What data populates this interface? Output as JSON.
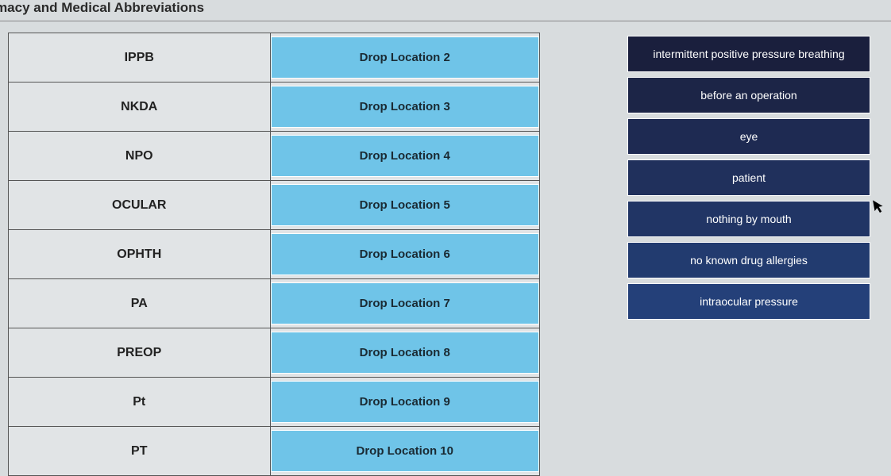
{
  "title": "armacy and Medical Abbreviations",
  "drop_zone_color": "#6fc4e8",
  "drop_zone_text_color": "#1a2a33",
  "rows": [
    {
      "abbrev": "IPPB",
      "drop_label": "Drop Location 2"
    },
    {
      "abbrev": "NKDA",
      "drop_label": "Drop Location 3"
    },
    {
      "abbrev": "NPO",
      "drop_label": "Drop Location 4"
    },
    {
      "abbrev": "OCULAR",
      "drop_label": "Drop Location 5"
    },
    {
      "abbrev": "OPHTH",
      "drop_label": "Drop Location 6"
    },
    {
      "abbrev": "PA",
      "drop_label": "Drop Location 7"
    },
    {
      "abbrev": "PREOP",
      "drop_label": "Drop Location 8"
    },
    {
      "abbrev": "Pt",
      "drop_label": "Drop Location 9"
    },
    {
      "abbrev": "PT",
      "drop_label": "Drop Location 10"
    }
  ],
  "answers": [
    {
      "text": "intermittent positive pressure breathing",
      "bg": "#1a1f3d"
    },
    {
      "text": "before an operation",
      "bg": "#1c2547"
    },
    {
      "text": "eye",
      "bg": "#1e2a52"
    },
    {
      "text": "patient",
      "bg": "#20305c"
    },
    {
      "text": "nothing by mouth",
      "bg": "#213565"
    },
    {
      "text": "no known drug allergies",
      "bg": "#223b6f"
    },
    {
      "text": "intraocular pressure",
      "bg": "#244079"
    }
  ]
}
